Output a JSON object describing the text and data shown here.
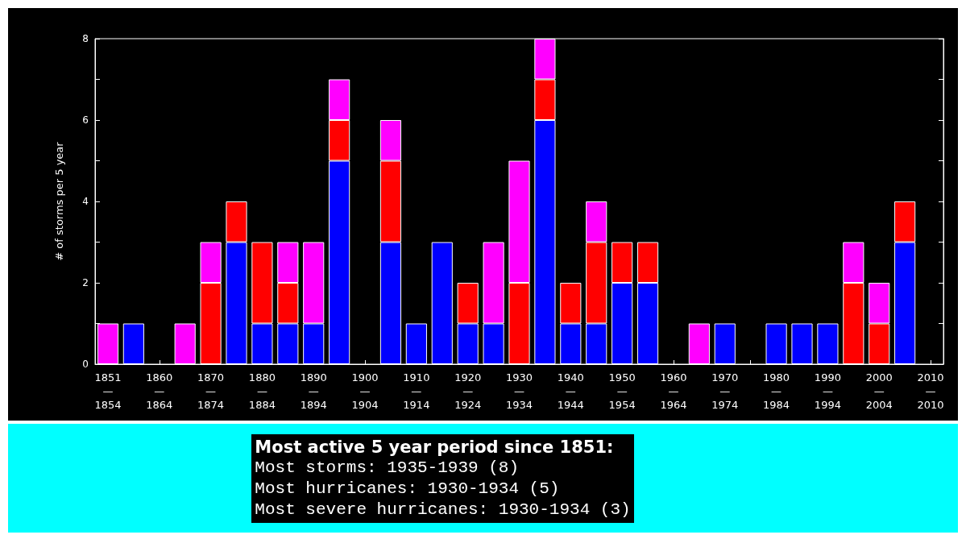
{
  "chart_data": {
    "type": "bar",
    "stacked": true,
    "ylabel": "# of storms per 5 year",
    "categories": [
      "1851\n—\n1854",
      null,
      "1860\n—\n1864",
      null,
      "1870\n—\n1874",
      null,
      "1880\n—\n1884",
      null,
      "1890\n—\n1894",
      null,
      "1900\n—\n1904",
      null,
      "1910\n—\n1914",
      null,
      "1920\n—\n1924",
      null,
      "1930\n—\n1934",
      null,
      "1940\n—\n1944",
      null,
      "1950\n—\n1954",
      null,
      "1960\n—\n1964",
      null,
      "1970\n—\n1974",
      null,
      "1980\n—\n1984",
      null,
      "1990\n—\n1994",
      null,
      "2000\n—\n2004",
      null,
      "2010\n—\n2010"
    ],
    "series": [
      {
        "color": "#0000ff",
        "values": [
          0,
          1,
          0,
          0,
          0,
          3,
          1,
          1,
          1,
          5,
          0,
          3,
          1,
          3,
          1,
          1,
          0,
          6,
          1,
          1,
          2,
          2,
          0,
          0,
          1,
          0,
          1,
          1,
          1,
          0,
          0,
          3,
          0
        ]
      },
      {
        "color": "#ff0000",
        "values": [
          0,
          0,
          0,
          0,
          2,
          1,
          2,
          1,
          0,
          1,
          0,
          2,
          0,
          0,
          1,
          0,
          2,
          1,
          1,
          2,
          1,
          1,
          0,
          0,
          0,
          0,
          0,
          0,
          0,
          2,
          1,
          1,
          0
        ]
      },
      {
        "color": "#ff00ff",
        "values": [
          1,
          0,
          0,
          1,
          1,
          0,
          0,
          1,
          2,
          1,
          0,
          1,
          0,
          0,
          0,
          2,
          3,
          1,
          0,
          1,
          0,
          0,
          0,
          1,
          0,
          0,
          0,
          0,
          0,
          1,
          1,
          0,
          0
        ]
      }
    ],
    "ylim": [
      0,
      8
    ],
    "yticks": [
      0,
      2,
      4,
      6,
      8
    ],
    "grid": false,
    "annotations": [
      "Most active 5 year period since 1851:",
      "Most storms: 1935-1939 (8)",
      "Most hurricanes: 1930-1934 (5)",
      "Most severe hurricanes: 1930-1934 (3)"
    ]
  }
}
